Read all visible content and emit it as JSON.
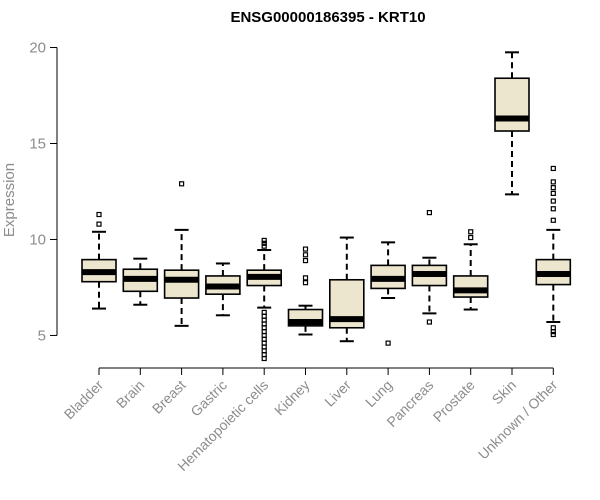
{
  "chart_data": {
    "type": "box",
    "title": "ENSG00000186395 - KRT10",
    "xlabel": "",
    "ylabel": "Expression",
    "ylim": [
      3.2,
      20.6
    ],
    "yticks": [
      5,
      10,
      15,
      20
    ],
    "grid": false,
    "legend": "none",
    "box_fill": "#ede6cf",
    "categories": [
      "Bladder",
      "Brain",
      "Breast",
      "Gastric",
      "Hematopoietic cells",
      "Kidney",
      "Liver",
      "Lung",
      "Pancreas",
      "Prostate",
      "Skin",
      "Unknown / Other"
    ],
    "boxes": [
      {
        "category": "Bladder",
        "low": 6.4,
        "q1": 7.8,
        "median": 8.3,
        "q3": 8.95,
        "high": 10.4,
        "outliers": [
          10.8,
          11.3
        ]
      },
      {
        "category": "Brain",
        "low": 6.6,
        "q1": 7.3,
        "median": 7.95,
        "q3": 8.45,
        "high": 9.0,
        "outliers": []
      },
      {
        "category": "Breast",
        "low": 5.5,
        "q1": 6.95,
        "median": 7.9,
        "q3": 8.4,
        "high": 10.5,
        "outliers": [
          12.9
        ]
      },
      {
        "category": "Gastric",
        "low": 6.05,
        "q1": 7.15,
        "median": 7.55,
        "q3": 8.1,
        "high": 8.75,
        "outliers": []
      },
      {
        "category": "Hematopoietic cells",
        "low": 6.45,
        "q1": 7.6,
        "median": 8.05,
        "q3": 8.4,
        "high": 9.45,
        "outliers": [
          9.65,
          9.8,
          9.95,
          6.2,
          6.0,
          5.8,
          5.6,
          5.4,
          5.2,
          5.0,
          4.8,
          4.6,
          4.4,
          4.2,
          4.0,
          3.8
        ]
      },
      {
        "category": "Kidney",
        "low": 5.05,
        "q1": 5.5,
        "median": 5.7,
        "q3": 6.35,
        "high": 6.55,
        "outliers": [
          7.75,
          8.0,
          8.9,
          9.2,
          9.5
        ]
      },
      {
        "category": "Liver",
        "low": 4.7,
        "q1": 5.4,
        "median": 5.85,
        "q3": 7.9,
        "high": 10.1,
        "outliers": []
      },
      {
        "category": "Lung",
        "low": 6.95,
        "q1": 7.45,
        "median": 7.95,
        "q3": 8.65,
        "high": 9.85,
        "outliers": [
          4.6
        ]
      },
      {
        "category": "Pancreas",
        "low": 6.15,
        "q1": 7.6,
        "median": 8.2,
        "q3": 8.65,
        "high": 9.05,
        "outliers": [
          5.7,
          11.4
        ]
      },
      {
        "category": "Prostate",
        "low": 6.35,
        "q1": 7.0,
        "median": 7.35,
        "q3": 8.1,
        "high": 9.75,
        "outliers": [
          10.1,
          10.4
        ]
      },
      {
        "category": "Skin",
        "low": 12.35,
        "q1": 15.65,
        "median": 16.3,
        "q3": 18.4,
        "high": 19.75,
        "outliers": []
      },
      {
        "category": "Unknown / Other",
        "low": 5.7,
        "q1": 7.65,
        "median": 8.2,
        "q3": 8.95,
        "high": 10.5,
        "outliers": [
          11.0,
          11.6,
          12.0,
          12.4,
          12.7,
          13.0,
          13.7,
          5.4,
          5.2,
          5.05
        ]
      }
    ]
  }
}
